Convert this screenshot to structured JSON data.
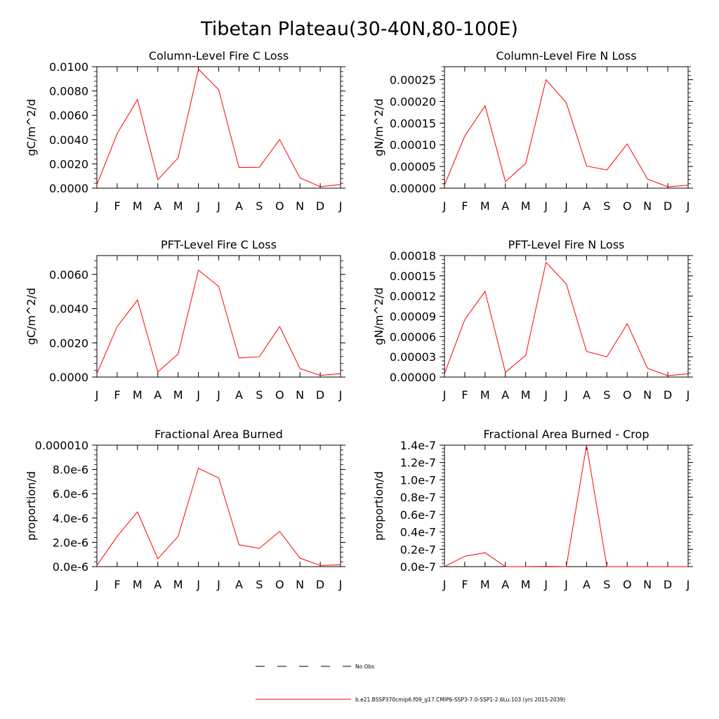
{
  "figure": {
    "title": "Tibetan Plateau(30-40N,80-100E)"
  },
  "legend": {
    "entries": [
      {
        "name": "No Obs",
        "color": "#000000",
        "style": "dashed"
      },
      {
        "name": "b.e21.BSSP370cmip6.f09_g17.CMIP6-SSP3-7.0-SSP1-2.6Lu.103 (yrs 2015-2039)",
        "color": "#ff0000",
        "style": "solid"
      }
    ]
  },
  "chart_data": [
    {
      "type": "line",
      "title": "Column-Level Fire C Loss",
      "ylabel": "gC/m^2/d",
      "categories": [
        "J",
        "F",
        "M",
        "A",
        "M",
        "J",
        "J",
        "A",
        "S",
        "O",
        "N",
        "D",
        "J"
      ],
      "ylim": [
        0,
        0.01
      ],
      "yticks": [
        0,
        0.002,
        0.004,
        0.006,
        0.008,
        0.01
      ],
      "ytick_labels": [
        "0.0000",
        "0.0020",
        "0.0040",
        "0.0060",
        "0.0080",
        "0.0100"
      ],
      "series": [
        {
          "color": "#ff0000",
          "values": [
            0.0003,
            0.0045,
            0.0073,
            0.0007,
            0.0025,
            0.0098,
            0.0081,
            0.0017,
            0.00172,
            0.004,
            0.00085,
            0.00012,
            0.0003
          ]
        }
      ]
    },
    {
      "type": "line",
      "title": "Column-Level Fire N Loss",
      "ylabel": "gN/m^2/d",
      "categories": [
        "J",
        "F",
        "M",
        "A",
        "M",
        "J",
        "J",
        "A",
        "S",
        "O",
        "N",
        "D",
        "J"
      ],
      "ylim": [
        0,
        0.00028
      ],
      "yticks": [
        0,
        5e-05,
        0.0001,
        0.00015,
        0.0002,
        0.00025
      ],
      "ytick_labels": [
        "0.00000",
        "0.00005",
        "0.00010",
        "0.00015",
        "0.00020",
        "0.00025"
      ],
      "series": [
        {
          "color": "#ff0000",
          "values": [
            7e-06,
            0.00012,
            0.00019,
            1.5e-05,
            5.7e-05,
            0.00025,
            0.000197,
            5.1e-05,
            4.2e-05,
            0.000102,
            2.1e-05,
            3e-06,
            7e-06
          ]
        }
      ]
    },
    {
      "type": "line",
      "title": "PFT-Level Fire C Loss",
      "ylabel": "gC/m^2/d",
      "categories": [
        "J",
        "F",
        "M",
        "A",
        "M",
        "J",
        "J",
        "A",
        "S",
        "O",
        "N",
        "D",
        "J"
      ],
      "ylim": [
        0,
        0.0071
      ],
      "yticks": [
        0,
        0.002,
        0.004,
        0.006
      ],
      "ytick_labels": [
        "0.0000",
        "0.0020",
        "0.0040",
        "0.0060"
      ],
      "series": [
        {
          "color": "#ff0000",
          "values": [
            0.0002,
            0.00295,
            0.0045,
            0.0003,
            0.00135,
            0.00625,
            0.0053,
            0.00112,
            0.00118,
            0.00295,
            0.0005,
            0.0001,
            0.0002
          ]
        }
      ]
    },
    {
      "type": "line",
      "title": "PFT-Level Fire N Loss",
      "ylabel": "gN/m^2/d",
      "categories": [
        "J",
        "F",
        "M",
        "A",
        "M",
        "J",
        "J",
        "A",
        "S",
        "O",
        "N",
        "D",
        "J"
      ],
      "ylim": [
        0,
        0.00018
      ],
      "yticks": [
        0,
        3e-05,
        6e-05,
        9e-05,
        0.00012,
        0.00015,
        0.00018
      ],
      "ytick_labels": [
        "0.00000",
        "0.00003",
        "0.00006",
        "0.00009",
        "0.00012",
        "0.00015",
        "0.00018"
      ],
      "series": [
        {
          "color": "#ff0000",
          "values": [
            5e-06,
            8.5e-05,
            0.000127,
            7e-06,
            3.2e-05,
            0.00017,
            0.000138,
            3.8e-05,
            3e-05,
            7.9e-05,
            1.3e-05,
            2e-06,
            5e-06
          ]
        }
      ]
    },
    {
      "type": "line",
      "title": "Fractional Area Burned",
      "ylabel": "proportion/d",
      "categories": [
        "J",
        "F",
        "M",
        "A",
        "M",
        "J",
        "J",
        "A",
        "S",
        "O",
        "N",
        "D",
        "J"
      ],
      "ylim": [
        0,
        1e-05
      ],
      "yticks": [
        0,
        2e-06,
        4e-06,
        6e-06,
        8e-06,
        1e-05
      ],
      "ytick_labels": [
        "0.0e-6",
        "2.0e-6",
        "4.0e-6",
        "6.0e-6",
        "8.0e-6",
        "0.000010"
      ],
      "series": [
        {
          "color": "#ff0000",
          "values": [
            1e-07,
            2.5e-06,
            4.5e-06,
            6.5e-07,
            2.5e-06,
            8.1e-06,
            7.3e-06,
            1.8e-06,
            1.5e-06,
            2.9e-06,
            7e-07,
            1e-07,
            1.5e-07
          ]
        }
      ]
    },
    {
      "type": "line",
      "title": "Fractional Area Burned - Crop",
      "ylabel": "proportion/d",
      "categories": [
        "J",
        "F",
        "M",
        "A",
        "M",
        "J",
        "J",
        "A",
        "S",
        "O",
        "N",
        "D",
        "J"
      ],
      "ylim": [
        0,
        1.4e-07
      ],
      "yticks": [
        0,
        2e-08,
        4e-08,
        6e-08,
        8e-08,
        1e-07,
        1.2e-07,
        1.4e-07
      ],
      "ytick_labels": [
        "0.0e-7",
        "0.2e-7",
        "0.4e-7",
        "0.6e-7",
        "0.8e-7",
        "1.0e-7",
        "1.2e-7",
        "1.4e-7"
      ],
      "series": [
        {
          "color": "#ff0000",
          "values": [
            0,
            1.2e-08,
            1.6e-08,
            0,
            0,
            3e-10,
            0,
            1.4e-07,
            0,
            0,
            0,
            0,
            0
          ]
        }
      ]
    }
  ]
}
